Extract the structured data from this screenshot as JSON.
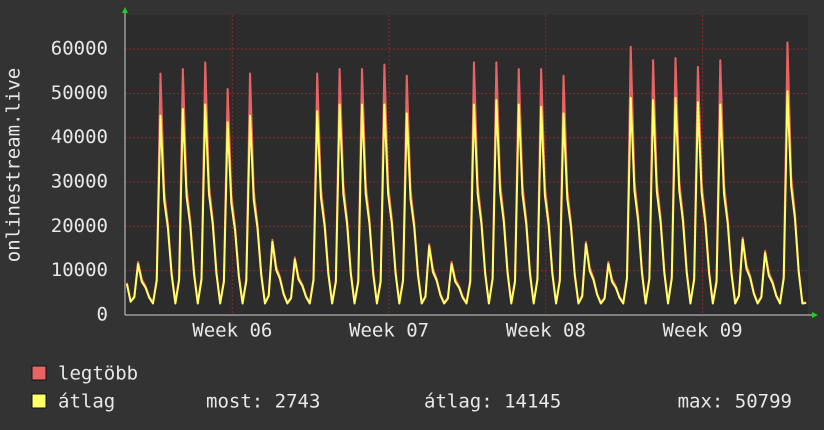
{
  "chart_data": {
    "type": "line",
    "ylabel": "onlinestream.live",
    "xlim": [
      -38,
      694
    ],
    "xticks": [
      {
        "value": 77,
        "label": "Week 06"
      },
      {
        "value": 245,
        "label": "Week 07"
      },
      {
        "value": 413,
        "label": "Week 08"
      },
      {
        "value": 581,
        "label": "Week 09"
      }
    ],
    "ylim": [
      0,
      67700
    ],
    "yticks": [
      0,
      10000,
      20000,
      30000,
      40000,
      50000,
      60000
    ],
    "grid": true,
    "x": [
      -36,
      -32,
      -28,
      -24,
      -20,
      -16,
      -12,
      -8,
      -4,
      0,
      4,
      8,
      12,
      16,
      20,
      24,
      28,
      32,
      36,
      40,
      44,
      48,
      52,
      56,
      60,
      64,
      68,
      72,
      76,
      80,
      84,
      88,
      92,
      96,
      100,
      104,
      108,
      112,
      116,
      120,
      124,
      128,
      132,
      136,
      140,
      144,
      148,
      152,
      156,
      160,
      164,
      168,
      172,
      176,
      180,
      184,
      188,
      192,
      196,
      200,
      204,
      208,
      212,
      216,
      220,
      224,
      228,
      232,
      236,
      240,
      244,
      248,
      252,
      256,
      260,
      264,
      268,
      272,
      276,
      280,
      284,
      288,
      292,
      296,
      300,
      304,
      308,
      312,
      316,
      320,
      324,
      328,
      332,
      336,
      340,
      344,
      348,
      352,
      356,
      360,
      364,
      368,
      372,
      376,
      380,
      384,
      388,
      392,
      396,
      400,
      404,
      408,
      412,
      416,
      420,
      424,
      428,
      432,
      436,
      440,
      444,
      448,
      452,
      456,
      460,
      464,
      468,
      472,
      476,
      480,
      484,
      488,
      492,
      496,
      500,
      504,
      508,
      512,
      516,
      520,
      524,
      528,
      532,
      536,
      540,
      544,
      548,
      552,
      556,
      560,
      564,
      568,
      572,
      576,
      580,
      584,
      588,
      592,
      596,
      600,
      604,
      608,
      612,
      616,
      620,
      624,
      628,
      632,
      636,
      640,
      644,
      648,
      652,
      656,
      660,
      664,
      668,
      672,
      676,
      680,
      684,
      688,
      692
    ],
    "series": [
      {
        "name": "legtöbb",
        "color": "#e86464",
        "values": [
          7300,
          3100,
          4200,
          12000,
          8100,
          6500,
          4100,
          2800,
          8100,
          54500,
          28000,
          20600,
          9500,
          2800,
          8300,
          55500,
          28800,
          21200,
          9700,
          2800,
          8400,
          57000,
          29500,
          21600,
          9800,
          2800,
          7900,
          51000,
          27100,
          20000,
          9100,
          2800,
          8100,
          54500,
          28000,
          20600,
          9500,
          2800,
          4500,
          17000,
          11000,
          8600,
          4900,
          2800,
          4000,
          13000,
          8600,
          6900,
          4300,
          2800,
          8200,
          54500,
          28600,
          21000,
          9600,
          2800,
          7900,
          55500,
          29500,
          21600,
          9800,
          2800,
          7900,
          55500,
          29500,
          21600,
          9800,
          2800,
          7900,
          56500,
          29500,
          21600,
          9800,
          2800,
          8100,
          54000,
          28300,
          20800,
          9500,
          2800,
          4300,
          16000,
          10500,
          8200,
          4700,
          2800,
          3900,
          12000,
          8100,
          6500,
          4100,
          2800,
          7900,
          57000,
          29500,
          21600,
          9800,
          2800,
          8500,
          57000,
          30000,
          22100,
          10000,
          2800,
          7900,
          55500,
          29500,
          21600,
          9800,
          2800,
          8300,
          55500,
          29200,
          21400,
          9800,
          2800,
          8100,
          54000,
          28300,
          20800,
          9500,
          2800,
          4400,
          16500,
          10800,
          8400,
          4800,
          2800,
          3900,
          12000,
          8100,
          6500,
          4100,
          2800,
          8600,
          60500,
          30300,
          22300,
          10100,
          2800,
          8500,
          57500,
          30000,
          22100,
          10000,
          2800,
          8600,
          58000,
          30300,
          22300,
          10100,
          2800,
          8400,
          56000,
          29800,
          21800,
          9900,
          2800,
          7900,
          57500,
          29500,
          21600,
          9800,
          2800,
          4500,
          17500,
          11300,
          8800,
          5000,
          2800,
          4200,
          14500,
          9600,
          7600,
          4500,
          2800,
          8700,
          61500,
          31200,
          22900,
          10300,
          2800,
          2800
        ]
      },
      {
        "name": "átlag",
        "color": "#ffff66",
        "values": [
          7000,
          3000,
          4000,
          11500,
          7500,
          6200,
          3900,
          2600,
          7700,
          45000,
          25900,
          19600,
          9000,
          2600,
          7900,
          46500,
          26700,
          20200,
          9200,
          2600,
          8000,
          47500,
          27300,
          20600,
          9300,
          2600,
          7500,
          43500,
          25100,
          19000,
          8700,
          2600,
          7700,
          45000,
          25900,
          19600,
          9000,
          2600,
          4300,
          16500,
          10200,
          8200,
          4700,
          2600,
          3800,
          12500,
          8000,
          6600,
          4100,
          2600,
          7800,
          46000,
          26500,
          20000,
          9100,
          2600,
          7500,
          47500,
          27300,
          20600,
          9300,
          2600,
          7500,
          47500,
          27300,
          20600,
          9300,
          2600,
          7500,
          47500,
          27300,
          20600,
          9300,
          2600,
          7700,
          45500,
          26200,
          19800,
          9000,
          2600,
          4100,
          15500,
          9700,
          7800,
          4500,
          2600,
          3700,
          11500,
          7500,
          6200,
          3900,
          2600,
          7500,
          47500,
          27300,
          20600,
          9300,
          2600,
          8100,
          48500,
          27800,
          21000,
          9500,
          2600,
          7500,
          47500,
          27300,
          20600,
          9300,
          2600,
          7900,
          47000,
          27000,
          20400,
          9300,
          2600,
          7700,
          45500,
          26200,
          19800,
          9000,
          2600,
          4200,
          16000,
          10000,
          8000,
          4600,
          2600,
          3700,
          11500,
          7500,
          6200,
          3900,
          2600,
          8200,
          49000,
          28100,
          21200,
          9600,
          2600,
          8100,
          48500,
          27800,
          21000,
          9500,
          2600,
          8200,
          49000,
          28100,
          21200,
          9600,
          2600,
          8000,
          48000,
          27600,
          20800,
          9400,
          2600,
          7500,
          47500,
          27300,
          20600,
          9300,
          2600,
          4300,
          17000,
          10500,
          8400,
          4800,
          2600,
          4000,
          14000,
          8900,
          7200,
          4300,
          2600,
          8300,
          50500,
          28900,
          21800,
          9800,
          2600,
          2700
        ]
      }
    ],
    "legend_stats": [
      "most: 2743",
      "átlag: 14145",
      "max: 50799"
    ]
  }
}
